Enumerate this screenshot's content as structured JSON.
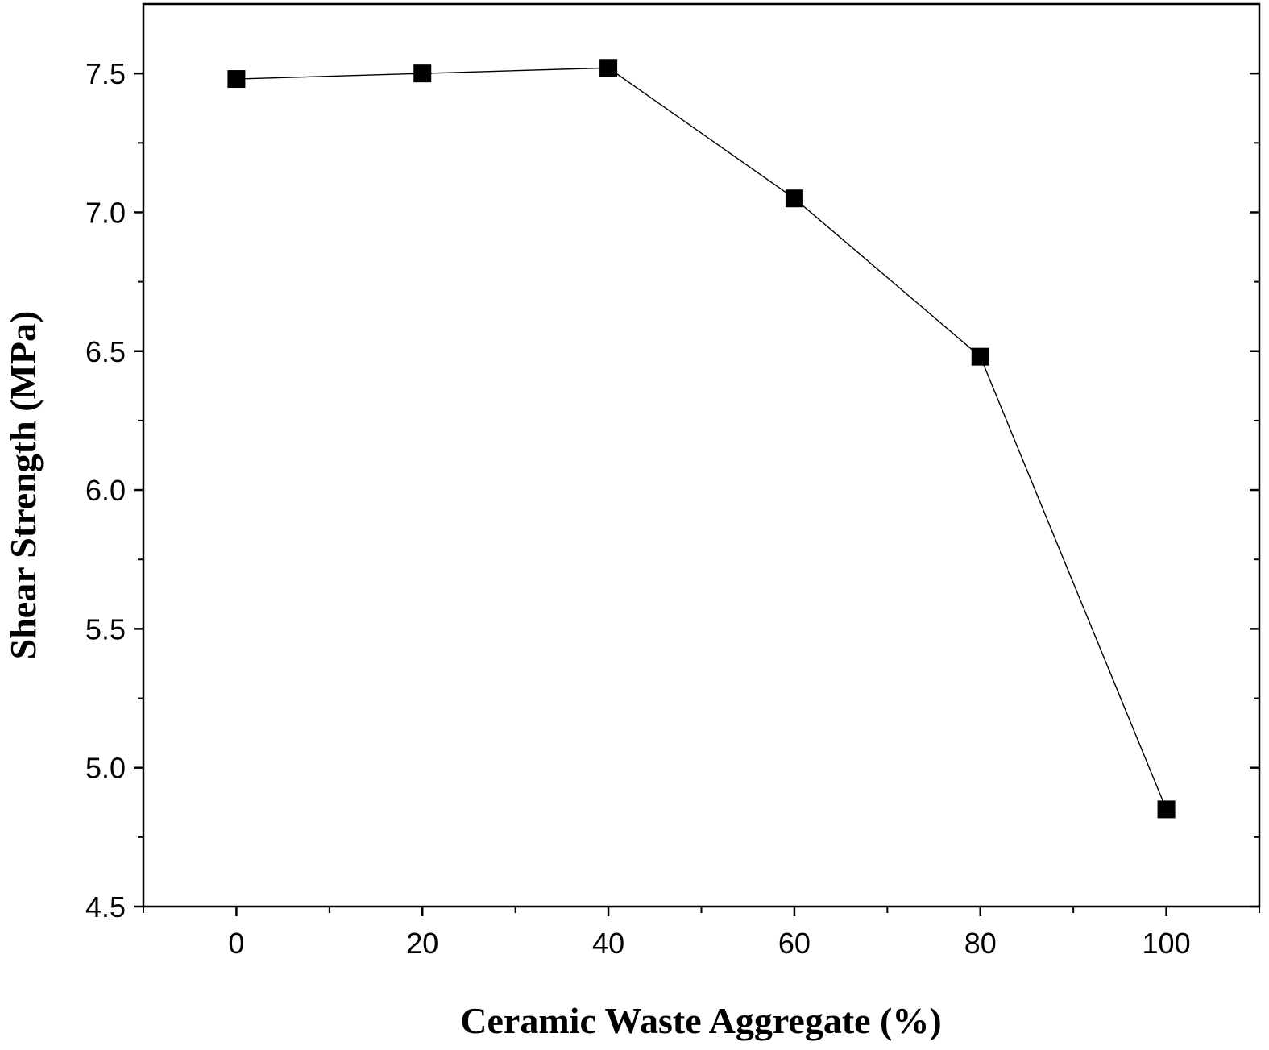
{
  "chart_data": {
    "type": "line",
    "title": "",
    "xlabel": "Ceramic Waste Aggregate (%)",
    "ylabel": "Shear Strength (MPa)",
    "x": [
      0,
      20,
      40,
      60,
      80,
      100
    ],
    "series": [
      {
        "values": [
          7.48,
          7.5,
          7.52,
          7.05,
          6.48,
          4.85
        ],
        "color": "#000000",
        "marker": "square"
      }
    ],
    "xlim": [
      -10,
      110
    ],
    "ylim": [
      4.5,
      7.75
    ],
    "xticks": [
      "0",
      "20",
      "40",
      "60",
      "80",
      "100"
    ],
    "yticks": [
      "4.5",
      "5.0",
      "5.5",
      "6.0",
      "6.5",
      "7.0",
      "7.5"
    ],
    "grid": false,
    "legend": "none"
  }
}
